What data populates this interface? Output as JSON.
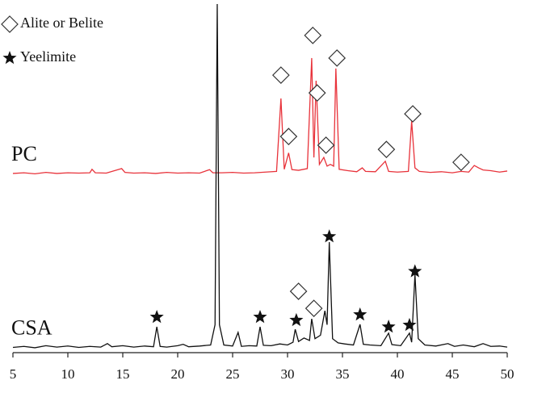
{
  "chart_data": {
    "type": "line",
    "xlim": [
      5,
      50
    ],
    "xticks": [
      5,
      10,
      15,
      20,
      25,
      30,
      35,
      40,
      45,
      50
    ],
    "ylim": [
      0,
      100
    ],
    "series": [
      {
        "name": "PC",
        "color": "#e8323a",
        "x": [
          5,
          6,
          7,
          8,
          9,
          10,
          11,
          12,
          12.2,
          12.5,
          13.5,
          14.9,
          15.2,
          16,
          17,
          18,
          19,
          20,
          21,
          22,
          22.9,
          23.2,
          24,
          25,
          26,
          27,
          28,
          29,
          29.4,
          29.7,
          30.1,
          30.4,
          31,
          31.8,
          32.2,
          32.4,
          32.6,
          32.9,
          33.3,
          33.6,
          33.9,
          34.2,
          34.4,
          34.7,
          35.5,
          36.3,
          36.8,
          37.1,
          38,
          38.9,
          39.2,
          40,
          41,
          41.3,
          41.6,
          42,
          43,
          44,
          45,
          45.8,
          46.5,
          47,
          47.4,
          47.8,
          48.5,
          49.3,
          50
        ],
        "values": [
          51.4,
          51.6,
          51.3,
          51.7,
          51.4,
          51.6,
          51.5,
          51.6,
          52.6,
          51.6,
          51.5,
          52.8,
          51.7,
          51.5,
          51.6,
          51.4,
          51.7,
          51.5,
          51.6,
          51.5,
          52.5,
          51.6,
          51.6,
          51.7,
          51.5,
          51.6,
          51.8,
          52.0,
          72.9,
          52.6,
          57.3,
          52.5,
          52.3,
          52.8,
          84.5,
          56,
          78,
          54,
          56,
          53.5,
          54,
          53.5,
          81.5,
          52.6,
          52.2,
          51.9,
          53,
          52,
          51.9,
          54.9,
          52,
          51.8,
          52,
          66.4,
          53,
          52,
          51.7,
          51.9,
          51.6,
          52,
          51.8,
          53.7,
          53,
          52.4,
          52.2,
          51.8,
          52.1
        ]
      },
      {
        "name": "CSA",
        "color": "#111111",
        "x": [
          5,
          6,
          7,
          8,
          9,
          10,
          11,
          12,
          13,
          13.6,
          14,
          15,
          16,
          17,
          17.8,
          18.1,
          18.4,
          19,
          20,
          20.5,
          21,
          22,
          23,
          23.4,
          23.6,
          23.8,
          24.2,
          25,
          25.5,
          25.8,
          26.5,
          27.2,
          27.5,
          27.8,
          28.5,
          29.3,
          30,
          30.5,
          30.7,
          31,
          31.5,
          32,
          32.2,
          32.5,
          33,
          33.4,
          33.6,
          33.8,
          34.1,
          34.6,
          35.2,
          36,
          36.6,
          36.9,
          37.5,
          38.5,
          39.2,
          39.5,
          40.3,
          41.1,
          41.3,
          41.6,
          41.9,
          42.5,
          43.5,
          44.6,
          45.2,
          46,
          47,
          47.8,
          48.5,
          49.3,
          50
        ],
        "values": [
          1.5,
          1.8,
          1.4,
          2.0,
          1.6,
          1.9,
          1.5,
          1.8,
          1.6,
          2.6,
          1.7,
          2.0,
          1.6,
          1.9,
          1.7,
          7.4,
          1.8,
          1.6,
          2.0,
          2.4,
          1.7,
          1.9,
          2.2,
          8,
          100,
          8,
          2.2,
          1.9,
          5.8,
          1.8,
          2.0,
          1.9,
          7.4,
          2.1,
          2.0,
          2.5,
          2.2,
          3,
          6.7,
          3.2,
          4.2,
          3.5,
          9.7,
          4,
          5,
          12,
          8,
          31.7,
          4,
          2.8,
          2.5,
          2.2,
          8.1,
          2.4,
          2.2,
          2.0,
          5.6,
          2.3,
          2.0,
          5.6,
          3,
          22.5,
          4,
          2.2,
          1.9,
          2.6,
          1.8,
          2.2,
          1.7,
          2.6,
          1.8,
          1.9,
          1.6
        ]
      }
    ],
    "peak_markers": [
      {
        "name": "Alite or Belite",
        "symbol": "diamond",
        "x": [
          29.4,
          30.1,
          32.3,
          32.7,
          33.5,
          34.5,
          39.0,
          41.4,
          45.8,
          31.0,
          32.4
        ],
        "y": [
          79.6,
          62,
          91,
          74.5,
          59.5,
          84.5,
          58.3,
          68.5,
          54.6,
          17.6,
          12.7
        ]
      },
      {
        "name": "Yeelimite",
        "symbol": "star",
        "x": [
          18.1,
          27.5,
          30.8,
          33.8,
          36.6,
          39.2,
          41.1,
          41.6
        ],
        "y": [
          10.2,
          10.2,
          9.3,
          33.3,
          10.9,
          7.4,
          7.9,
          23.3
        ]
      }
    ]
  }
}
